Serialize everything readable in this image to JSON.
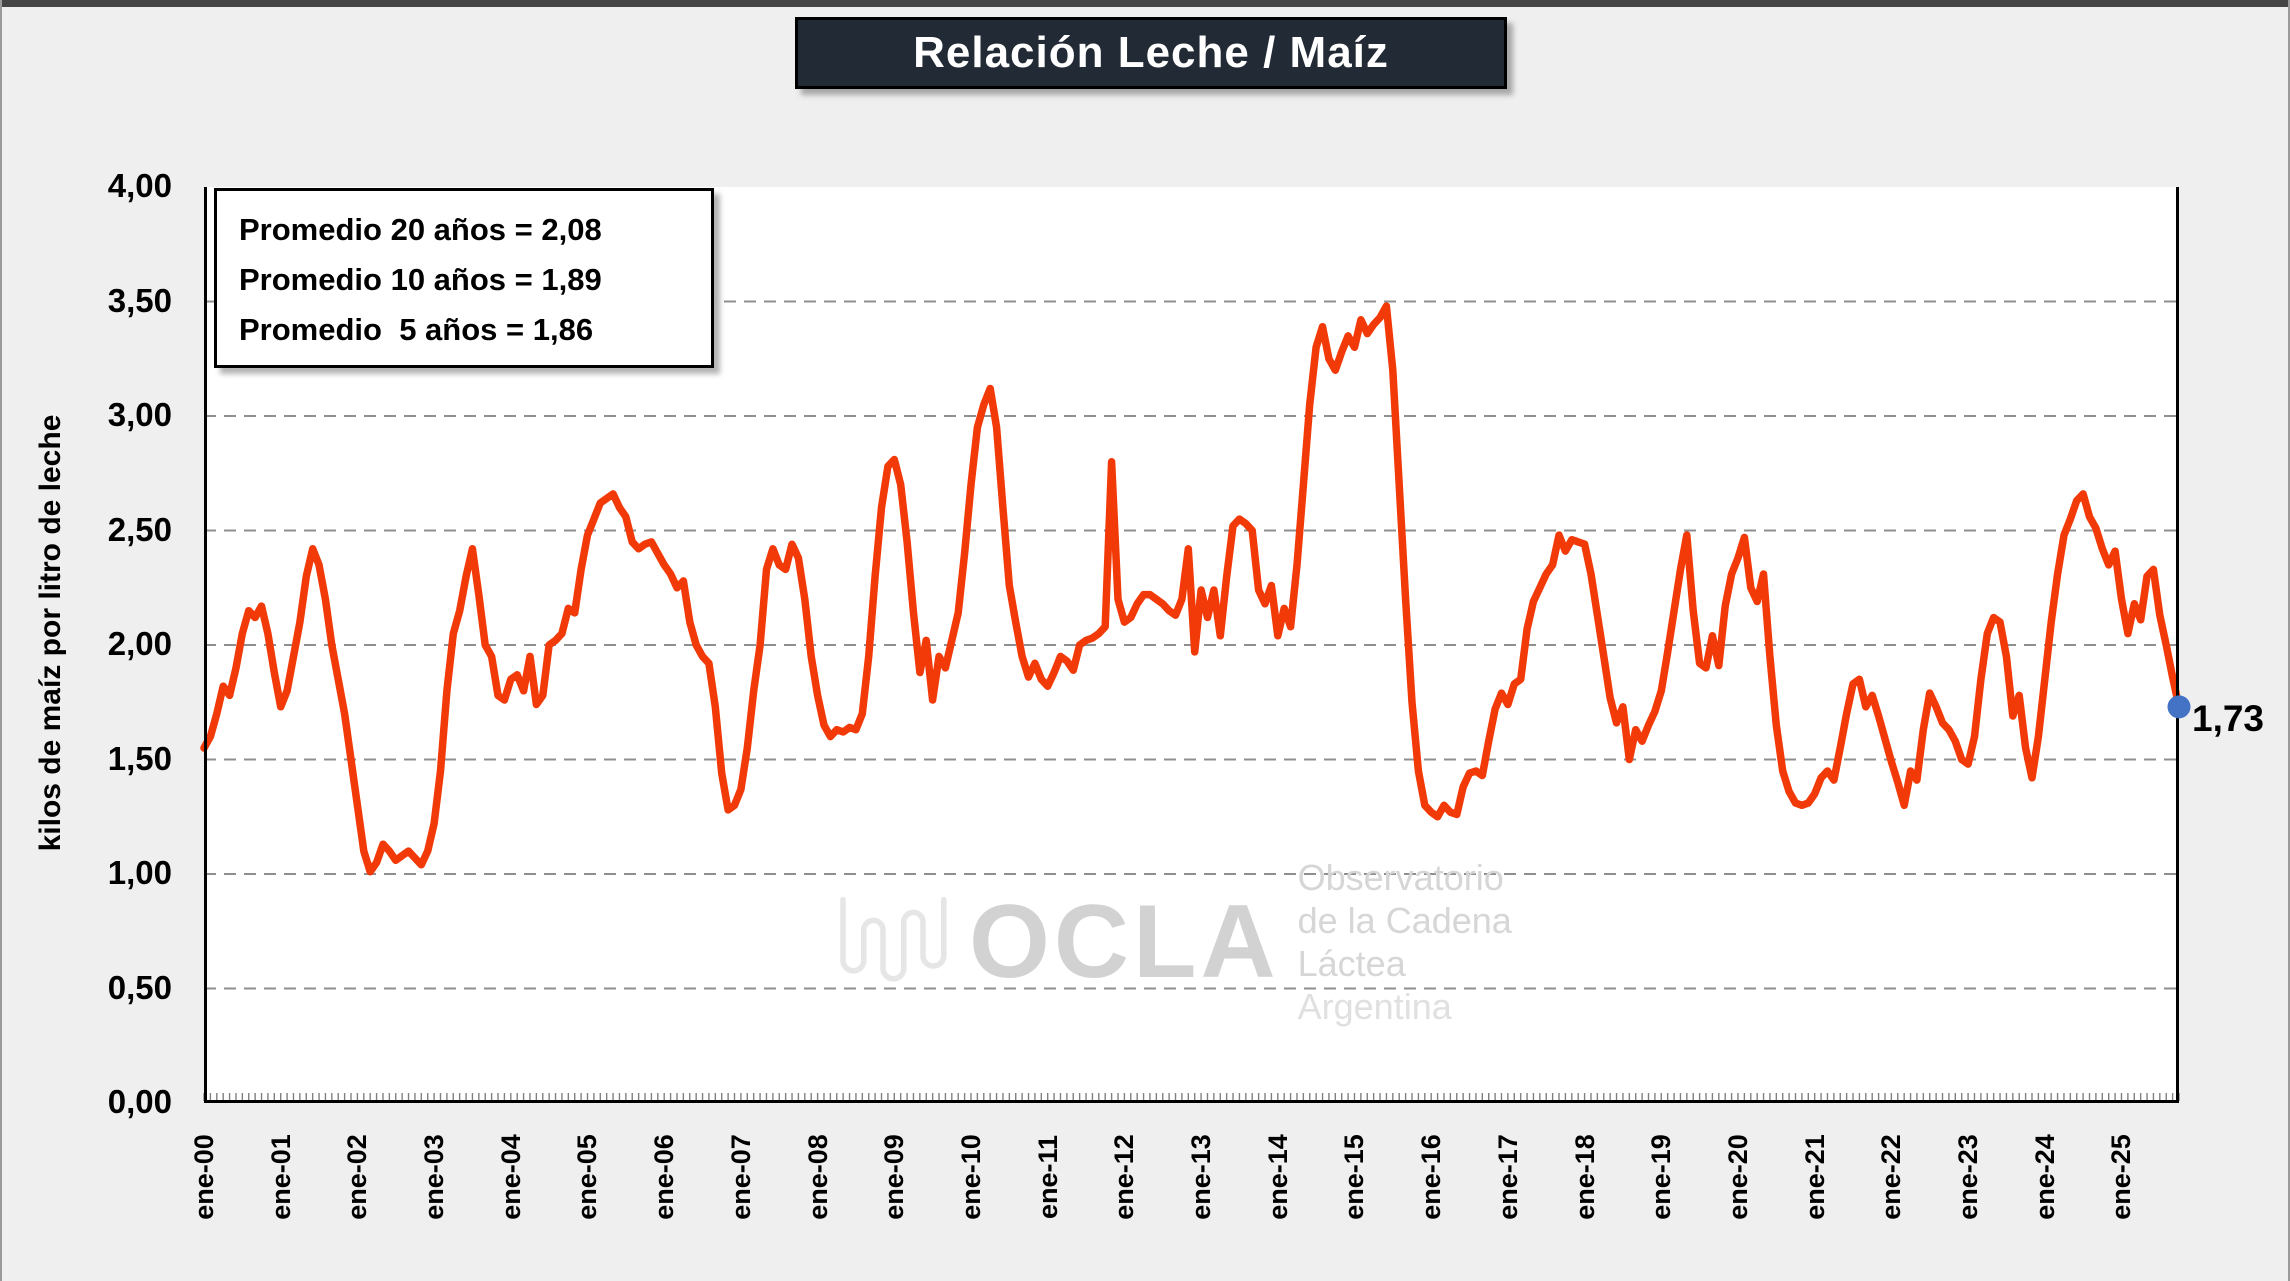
{
  "title": "Relación Leche / Maíz",
  "annotation_box": {
    "line1": "Promedio 20 años = 2,08",
    "line2": "Promedio 10 años = 1,89",
    "line3": "Promedio  5 años = 1,86"
  },
  "watermark": {
    "brand": "OCLA",
    "line1": "Observatorio",
    "line2": "de la Cadena Láctea",
    "line3": "Argentina"
  },
  "end_label": "1,73",
  "colors": {
    "line": "#F23908",
    "end_dot": "#4472C4",
    "title_bg": "#222A35",
    "grid": "#8f8f8f",
    "plot_bg": "#ffffff",
    "page_bg": "#efefef"
  },
  "chart_data": {
    "type": "line",
    "title": "Relación Leche / Maíz",
    "xlabel": "",
    "ylabel": "kilos de maíz por litro de leche",
    "ylim": [
      0,
      4
    ],
    "ytick_step": 0.5,
    "ytick_labels": [
      "4,00",
      "3,50",
      "3,00",
      "2,50",
      "2,00",
      "1,50",
      "1,00",
      "0,50",
      "0,00"
    ],
    "xtick_labels": [
      "ene-00",
      "ene-01",
      "ene-02",
      "ene-03",
      "ene-04",
      "ene-05",
      "ene-06",
      "ene-07",
      "ene-08",
      "ene-09",
      "ene-10",
      "ene-11",
      "ene-12",
      "ene-13",
      "ene-14",
      "ene-15",
      "ene-16",
      "ene-17",
      "ene-18",
      "ene-19",
      "ene-20",
      "ene-21",
      "ene-22",
      "ene-23",
      "ene-24",
      "ene-25"
    ],
    "x_range": "monthly, Jan 2000 to Oct 2025",
    "grid": "dashed-horizontal",
    "legend_position": "none",
    "averages": {
      "years20": 2.08,
      "years10": 1.89,
      "years5": 1.86
    },
    "last_value": 1.73,
    "series": [
      {
        "name": "Relación Leche / Maíz",
        "values": [
          1.55,
          1.6,
          1.7,
          1.82,
          1.78,
          1.9,
          2.05,
          2.15,
          2.12,
          2.17,
          2.05,
          1.88,
          1.73,
          1.8,
          1.95,
          2.1,
          2.3,
          2.42,
          2.35,
          2.2,
          2.0,
          1.85,
          1.7,
          1.5,
          1.3,
          1.1,
          1.01,
          1.05,
          1.13,
          1.1,
          1.06,
          1.08,
          1.1,
          1.07,
          1.04,
          1.1,
          1.22,
          1.45,
          1.8,
          2.05,
          2.15,
          2.3,
          2.42,
          2.22,
          2.0,
          1.95,
          1.78,
          1.76,
          1.85,
          1.87,
          1.8,
          1.95,
          1.74,
          1.78,
          2.0,
          2.02,
          2.05,
          2.16,
          2.14,
          2.33,
          2.48,
          2.55,
          2.62,
          2.64,
          2.66,
          2.6,
          2.56,
          2.45,
          2.42,
          2.44,
          2.45,
          2.4,
          2.35,
          2.31,
          2.25,
          2.28,
          2.1,
          2.0,
          1.95,
          1.92,
          1.73,
          1.44,
          1.28,
          1.3,
          1.37,
          1.55,
          1.8,
          2.0,
          2.33,
          2.42,
          2.35,
          2.33,
          2.44,
          2.38,
          2.2,
          1.95,
          1.78,
          1.65,
          1.6,
          1.63,
          1.62,
          1.64,
          1.63,
          1.7,
          1.95,
          2.3,
          2.6,
          2.78,
          2.81,
          2.7,
          2.45,
          2.14,
          1.88,
          2.02,
          1.76,
          1.95,
          1.9,
          2.02,
          2.14,
          2.4,
          2.7,
          2.95,
          3.05,
          3.12,
          2.95,
          2.6,
          2.26,
          2.1,
          1.95,
          1.86,
          1.92,
          1.85,
          1.82,
          1.88,
          1.95,
          1.93,
          1.89,
          2.0,
          2.02,
          2.03,
          2.05,
          2.08,
          2.8,
          2.2,
          2.1,
          2.12,
          2.18,
          2.22,
          2.22,
          2.2,
          2.18,
          2.15,
          2.13,
          2.2,
          2.42,
          1.97,
          2.24,
          2.12,
          2.24,
          2.04,
          2.3,
          2.52,
          2.55,
          2.53,
          2.5,
          2.24,
          2.18,
          2.26,
          2.04,
          2.16,
          2.08,
          2.35,
          2.7,
          3.05,
          3.3,
          3.39,
          3.25,
          3.2,
          3.28,
          3.35,
          3.3,
          3.42,
          3.36,
          3.4,
          3.43,
          3.48,
          3.2,
          2.7,
          2.2,
          1.75,
          1.45,
          1.3,
          1.27,
          1.25,
          1.3,
          1.27,
          1.26,
          1.38,
          1.44,
          1.45,
          1.43,
          1.58,
          1.72,
          1.79,
          1.74,
          1.83,
          1.85,
          2.07,
          2.19,
          2.25,
          2.31,
          2.35,
          2.48,
          2.41,
          2.46,
          2.45,
          2.44,
          2.31,
          2.13,
          1.95,
          1.77,
          1.66,
          1.73,
          1.5,
          1.63,
          1.58,
          1.65,
          1.71,
          1.8,
          1.97,
          2.15,
          2.33,
          2.48,
          2.15,
          1.92,
          1.9,
          2.04,
          1.91,
          2.17,
          2.31,
          2.38,
          2.47,
          2.25,
          2.19,
          2.31,
          1.95,
          1.65,
          1.45,
          1.36,
          1.31,
          1.3,
          1.31,
          1.35,
          1.42,
          1.45,
          1.41,
          1.55,
          1.7,
          1.83,
          1.85,
          1.73,
          1.78,
          1.69,
          1.59,
          1.49,
          1.4,
          1.3,
          1.45,
          1.41,
          1.63,
          1.79,
          1.73,
          1.66,
          1.63,
          1.58,
          1.5,
          1.48,
          1.6,
          1.85,
          2.05,
          2.12,
          2.1,
          1.95,
          1.69,
          1.78,
          1.55,
          1.42,
          1.6,
          1.85,
          2.1,
          2.31,
          2.48,
          2.55,
          2.63,
          2.66,
          2.56,
          2.51,
          2.42,
          2.35,
          2.41,
          2.2,
          2.05,
          2.18,
          2.11,
          2.3,
          2.33,
          2.13,
          2.0,
          1.86,
          1.73
        ]
      }
    ]
  }
}
